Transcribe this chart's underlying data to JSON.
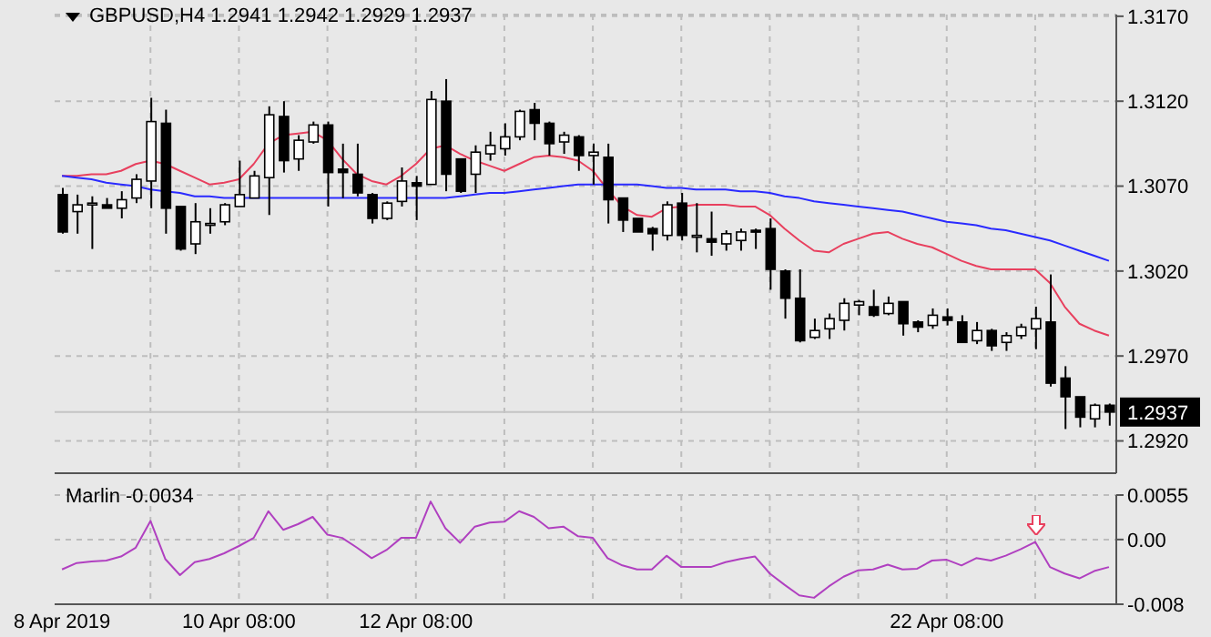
{
  "chart_data": [
    {
      "type": "candlestick",
      "title": "GBPUSD,H4  1.2941 1.2942 1.2929 1.2937",
      "ohlc": [
        [
          1.3065,
          1.3069,
          1.3042,
          1.3043
        ],
        [
          1.3055,
          1.3065,
          1.3042,
          1.3059
        ],
        [
          1.306,
          1.3064,
          1.3033,
          1.306
        ],
        [
          1.3059,
          1.3063,
          1.3057,
          1.3057
        ],
        [
          1.3057,
          1.3067,
          1.3051,
          1.3062
        ],
        [
          1.3063,
          1.3077,
          1.306,
          1.3074
        ],
        [
          1.3073,
          1.3122,
          1.3057,
          1.3108
        ],
        [
          1.3107,
          1.3115,
          1.3042,
          1.3057
        ],
        [
          1.3058,
          1.3058,
          1.3032,
          1.3033
        ],
        [
          1.3036,
          1.306,
          1.303,
          1.3049
        ],
        [
          1.3048,
          1.3057,
          1.3042,
          1.3048
        ],
        [
          1.3049,
          1.306,
          1.3047,
          1.3059
        ],
        [
          1.3058,
          1.3085,
          1.3058,
          1.3065
        ],
        [
          1.3063,
          1.3079,
          1.3063,
          1.3076
        ],
        [
          1.3075,
          1.3117,
          1.3053,
          1.3112
        ],
        [
          1.3111,
          1.312,
          1.3078,
          1.3085
        ],
        [
          1.3086,
          1.31,
          1.3079,
          1.3097
        ],
        [
          1.3096,
          1.3108,
          1.3095,
          1.3106
        ],
        [
          1.3106,
          1.3108,
          1.3058,
          1.3078
        ],
        [
          1.308,
          1.3095,
          1.3063,
          1.3078
        ],
        [
          1.3077,
          1.3095,
          1.3064,
          1.3066
        ],
        [
          1.3065,
          1.3066,
          1.3048,
          1.3051
        ],
        [
          1.3051,
          1.3061,
          1.305,
          1.306
        ],
        [
          1.3061,
          1.3081,
          1.3058,
          1.3073
        ],
        [
          1.3072,
          1.3076,
          1.305,
          1.307
        ],
        [
          1.3071,
          1.3126,
          1.3071,
          1.3121
        ],
        [
          1.312,
          1.3133,
          1.3067,
          1.3077
        ],
        [
          1.3086,
          1.3086,
          1.3066,
          1.3067
        ],
        [
          1.3077,
          1.3094,
          1.3066,
          1.309
        ],
        [
          1.3089,
          1.3102,
          1.3085,
          1.3094
        ],
        [
          1.3092,
          1.3107,
          1.3088,
          1.3099
        ],
        [
          1.3099,
          1.3115,
          1.3097,
          1.3114
        ],
        [
          1.3115,
          1.3119,
          1.3097,
          1.3107
        ],
        [
          1.3107,
          1.3108,
          1.3088,
          1.3095
        ],
        [
          1.3096,
          1.3102,
          1.3089,
          1.31
        ],
        [
          1.3099,
          1.31,
          1.3079,
          1.3088
        ],
        [
          1.3088,
          1.3095,
          1.3071,
          1.309
        ],
        [
          1.3087,
          1.3095,
          1.3048,
          1.3062
        ],
        [
          1.3063,
          1.3063,
          1.3043,
          1.305
        ],
        [
          1.3051,
          1.3051,
          1.3043,
          1.3043
        ],
        [
          1.3045,
          1.3046,
          1.3032,
          1.3042
        ],
        [
          1.3041,
          1.3061,
          1.3038,
          1.3059
        ],
        [
          1.306,
          1.3066,
          1.3038,
          1.3041
        ],
        [
          1.3041,
          1.306,
          1.3031,
          1.3041
        ],
        [
          1.3039,
          1.3055,
          1.3029,
          1.3037
        ],
        [
          1.3036,
          1.3044,
          1.3032,
          1.3042
        ],
        [
          1.3038,
          1.3045,
          1.3032,
          1.3043
        ],
        [
          1.3044,
          1.3045,
          1.3033,
          1.3043
        ],
        [
          1.3045,
          1.3051,
          1.3009,
          1.3021
        ],
        [
          1.302,
          1.3021,
          1.2992,
          1.3004
        ],
        [
          1.3004,
          1.3021,
          1.2978,
          1.2979
        ],
        [
          1.2981,
          1.2992,
          1.298,
          1.2985
        ],
        [
          1.2986,
          1.2995,
          1.298,
          1.2992
        ],
        [
          1.2991,
          1.3004,
          1.2985,
          1.3001
        ],
        [
          1.3,
          1.3003,
          1.2994,
          1.3002
        ],
        [
          1.2999,
          1.3009,
          1.2993,
          1.2994
        ],
        [
          1.2995,
          1.3005,
          1.2994,
          1.3001
        ],
        [
          1.3002,
          1.3002,
          1.2982,
          1.2989
        ],
        [
          1.299,
          1.2991,
          1.2984,
          1.2987
        ],
        [
          1.2988,
          1.2998,
          1.2986,
          1.2994
        ],
        [
          1.2993,
          1.2998,
          1.2988,
          1.2991
        ],
        [
          1.299,
          1.2994,
          1.2978,
          1.2978
        ],
        [
          1.2979,
          1.299,
          1.2977,
          1.2985
        ],
        [
          1.2985,
          1.2986,
          1.2973,
          1.2976
        ],
        [
          1.2978,
          1.2984,
          1.2973,
          1.2982
        ],
        [
          1.2982,
          1.2989,
          1.298,
          1.2987
        ],
        [
          1.2986,
          1.2999,
          1.2974,
          1.2992
        ],
        [
          1.299,
          1.3018,
          1.2952,
          1.2954
        ],
        [
          1.2957,
          1.2964,
          1.2927,
          1.2946
        ],
        [
          1.2946,
          1.2946,
          1.2928,
          1.2934
        ],
        [
          1.2933,
          1.2942,
          1.2928,
          1.2941
        ],
        [
          1.2941,
          1.2942,
          1.2929,
          1.2937
        ]
      ],
      "series": [
        {
          "type": "line",
          "color": "#e8405e",
          "values": [
            1.3076,
            1.3076,
            1.3077,
            1.3077,
            1.3079,
            1.3083,
            1.3085,
            1.3083,
            1.3079,
            1.3075,
            1.3071,
            1.3072,
            1.3074,
            1.3083,
            1.3095,
            1.31,
            1.3101,
            1.3102,
            1.3097,
            1.3086,
            1.3077,
            1.3073,
            1.3071,
            1.3076,
            1.3083,
            1.3092,
            1.3094,
            1.3089,
            1.3085,
            1.3082,
            1.3079,
            1.3083,
            1.3087,
            1.3088,
            1.3087,
            1.3085,
            1.3079,
            1.3068,
            1.3058,
            1.3053,
            1.3052,
            1.3057,
            1.3058,
            1.3059,
            1.3059,
            1.3059,
            1.3058,
            1.3058,
            1.3053,
            1.3045,
            1.3038,
            1.3032,
            1.3031,
            1.3036,
            1.3039,
            1.3042,
            1.3043,
            1.3039,
            1.3036,
            1.3034,
            1.303,
            1.3026,
            1.3023,
            1.3021,
            1.3021,
            1.3021,
            1.3021,
            1.3013,
            1.2999,
            1.2989,
            1.2985,
            1.2982
          ]
        },
        {
          "type": "line",
          "color": "#2a2aff",
          "values": [
            1.3076,
            1.3075,
            1.3074,
            1.3072,
            1.3071,
            1.307,
            1.3068,
            1.3067,
            1.3066,
            1.3064,
            1.3064,
            1.3063,
            1.3063,
            1.3063,
            1.3063,
            1.3063,
            1.3063,
            1.3063,
            1.3063,
            1.3063,
            1.3063,
            1.3063,
            1.3063,
            1.3063,
            1.3063,
            1.3063,
            1.3063,
            1.3064,
            1.3065,
            1.3066,
            1.3066,
            1.3067,
            1.3068,
            1.3069,
            1.307,
            1.3071,
            1.3071,
            1.3071,
            1.3071,
            1.3071,
            1.307,
            1.3069,
            1.3069,
            1.3068,
            1.3068,
            1.3068,
            1.3067,
            1.3067,
            1.3066,
            1.3064,
            1.3063,
            1.3061,
            1.306,
            1.3059,
            1.3058,
            1.3057,
            1.3056,
            1.3055,
            1.3053,
            1.3051,
            1.3049,
            1.3048,
            1.3047,
            1.3045,
            1.3044,
            1.3042,
            1.304,
            1.3038,
            1.3035,
            1.3032,
            1.3029,
            1.3026
          ]
        }
      ],
      "ylim": [
        1.2901,
        1.3171
      ],
      "yticks": [
        {
          "value": 1.317,
          "label": "1.3170"
        },
        {
          "value": 1.312,
          "label": "1.3120"
        },
        {
          "value": 1.307,
          "label": "1.3070"
        },
        {
          "value": 1.302,
          "label": "1.3020"
        },
        {
          "value": 1.297,
          "label": "1.2970"
        },
        {
          "value": 1.292,
          "label": "1.2920"
        }
      ],
      "ref_lines": [
        {
          "axis": "y",
          "value": 1.2937,
          "label": "1.2937",
          "color": "#c4c4c4"
        }
      ],
      "grid": true,
      "tick_labels": "y"
    },
    {
      "type": "line",
      "title": "Marlin -0.0034",
      "categories": [
        "8 Apr 2019",
        null,
        null,
        null,
        null,
        null,
        null,
        null,
        null,
        null,
        null,
        null,
        "10 Apr 08:00",
        null,
        null,
        null,
        null,
        null,
        null,
        null,
        null,
        null,
        null,
        null,
        "12 Apr 08:00",
        null,
        null,
        null,
        null,
        null,
        null,
        null,
        null,
        null,
        null,
        null,
        null,
        null,
        null,
        null,
        null,
        null,
        null,
        null,
        null,
        null,
        null,
        null,
        null,
        null,
        null,
        null,
        null,
        null,
        null,
        null,
        null,
        null,
        null,
        null,
        "22 Apr 08:00",
        null,
        null,
        null,
        null,
        null,
        null,
        null,
        null,
        null,
        null,
        null
      ],
      "series": [
        {
          "color": "#b040c0",
          "values": [
            -0.0037,
            -0.0029,
            -0.0027,
            -0.0026,
            -0.0021,
            -0.001,
            0.0023,
            -0.0024,
            -0.0044,
            -0.0028,
            -0.0024,
            -0.0017,
            -0.0008,
            0.0002,
            0.0035,
            0.0012,
            0.0019,
            0.0028,
            0.0006,
            0.0002,
            -0.001,
            -0.0023,
            -0.0013,
            0.0002,
            0.0002,
            0.0047,
            0.0014,
            -0.0004,
            0.0016,
            0.0021,
            0.0022,
            0.0035,
            0.0028,
            0.0014,
            0.0016,
            0.0004,
            0.0002,
            -0.0023,
            -0.0032,
            -0.0037,
            -0.0037,
            -0.002,
            -0.0034,
            -0.0034,
            -0.0034,
            -0.0028,
            -0.0024,
            -0.0021,
            -0.0042,
            -0.0056,
            -0.0069,
            -0.0072,
            -0.0058,
            -0.0046,
            -0.0038,
            -0.0037,
            -0.0031,
            -0.0037,
            -0.0036,
            -0.0026,
            -0.0025,
            -0.0032,
            -0.0023,
            -0.0026,
            -0.002,
            -0.0012,
            -0.0003,
            -0.0034,
            -0.0042,
            -0.0048,
            -0.0039,
            -0.0034
          ]
        }
      ],
      "ylim": [
        -0.008,
        0.0055
      ],
      "yticks": [
        0.0055,
        {
          "value": 0,
          "label": "0.00"
        },
        -0.008
      ],
      "grid": true
    }
  ]
}
